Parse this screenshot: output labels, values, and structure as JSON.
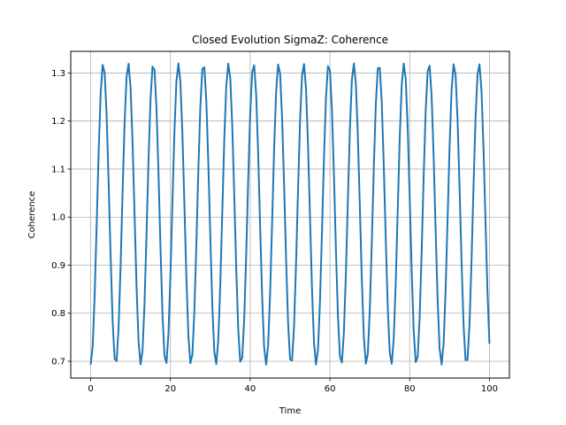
{
  "chart_data": {
    "type": "line",
    "title": "Closed Evolution SigmaZ: Coherence",
    "xlabel": "Time",
    "ylabel": "Coherence",
    "xlim": [
      -5,
      105
    ],
    "ylim": [
      0.665,
      1.345
    ],
    "xticks": [
      0,
      20,
      40,
      60,
      80,
      100
    ],
    "xtick_labels": [
      "0",
      "20",
      "40",
      "60",
      "80",
      "100"
    ],
    "yticks": [
      0.7,
      0.8,
      0.9,
      1.0,
      1.1,
      1.2,
      1.3
    ],
    "ytick_labels": [
      "0.7",
      "0.8",
      "0.9",
      "1.0",
      "1.1",
      "1.2",
      "1.3"
    ],
    "grid": true,
    "line_color": "#1f77b4",
    "series": [
      {
        "x_start": 0,
        "x_end": 100,
        "num_points": 201,
        "period": 6.2832,
        "min": 0.693,
        "max": 1.32,
        "phase": "starts at minimum"
      }
    ]
  }
}
